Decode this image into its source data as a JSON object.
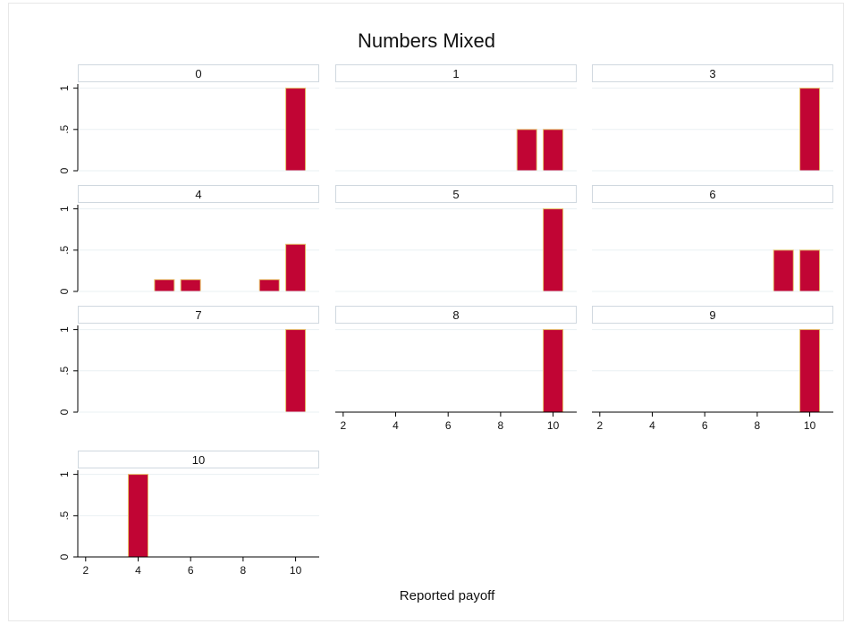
{
  "chart_data": {
    "type": "bar",
    "title": "Numbers Mixed",
    "xlabel": "Reported payoff",
    "ylabel": "",
    "xlim": [
      1.7,
      10.9
    ],
    "ylim": [
      0,
      1.05
    ],
    "x_ticks": [
      "2",
      "4",
      "6",
      "8",
      "10"
    ],
    "y_ticks": [
      "0",
      ".5",
      "1"
    ],
    "bar_width": 0.75,
    "grid": true,
    "colors": {
      "bar": "#c10534",
      "bar_edge": "#e6c06a",
      "strip_border": "#d0d8df",
      "axis": "#000000"
    },
    "panels": [
      {
        "label": "0",
        "bars": [
          {
            "x": 10,
            "y": 1
          }
        ]
      },
      {
        "label": "1",
        "bars": [
          {
            "x": 9,
            "y": 0.5
          },
          {
            "x": 10,
            "y": 0.5
          }
        ]
      },
      {
        "label": "3",
        "bars": [
          {
            "x": 10,
            "y": 1
          }
        ]
      },
      {
        "label": "4",
        "bars": [
          {
            "x": 5,
            "y": 0.143
          },
          {
            "x": 6,
            "y": 0.143
          },
          {
            "x": 9,
            "y": 0.143
          },
          {
            "x": 10,
            "y": 0.571
          }
        ]
      },
      {
        "label": "5",
        "bars": [
          {
            "x": 10,
            "y": 1
          }
        ]
      },
      {
        "label": "6",
        "bars": [
          {
            "x": 9,
            "y": 0.5
          },
          {
            "x": 10,
            "y": 0.5
          }
        ]
      },
      {
        "label": "7",
        "bars": [
          {
            "x": 10,
            "y": 1
          }
        ]
      },
      {
        "label": "8",
        "bars": [
          {
            "x": 10,
            "y": 1
          }
        ]
      },
      {
        "label": "9",
        "bars": [
          {
            "x": 10,
            "y": 1
          }
        ]
      },
      {
        "label": "10",
        "bars": [
          {
            "x": 4,
            "y": 1
          }
        ]
      }
    ]
  }
}
